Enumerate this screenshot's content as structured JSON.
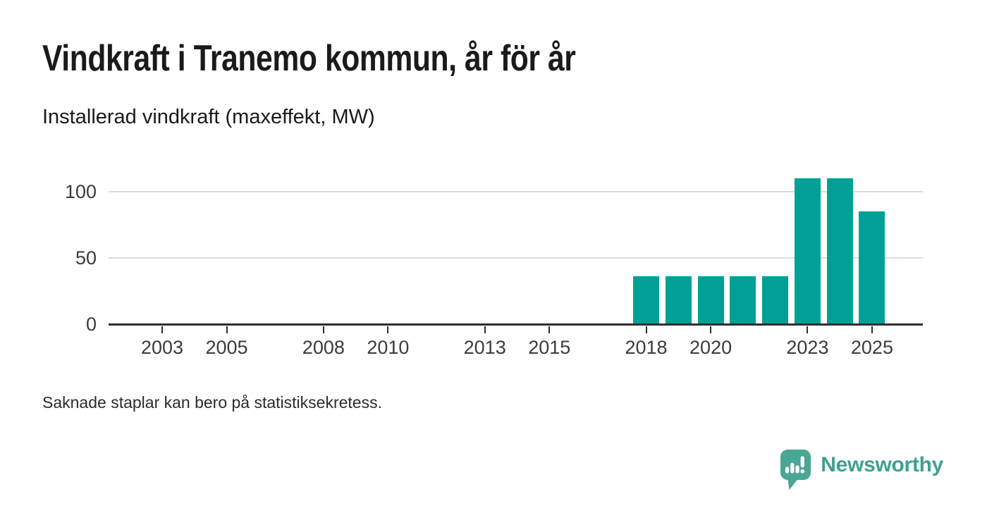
{
  "title": "Vindkraft i Tranemo kommun, år för år",
  "subtitle": "Installerad vindkraft (maxeffekt, MW)",
  "footnote": "Saknade staplar kan bero på statistiksekretess.",
  "brand": {
    "name": "Newsworthy",
    "icon": "bar-chart-speech-bubble-icon"
  },
  "colors": {
    "background": "#ffffff",
    "bar": "#00a097",
    "axis_line": "#2e2e2e",
    "gridline": "#dcdcdc",
    "axis_text": "#3b3b3b",
    "title_text": "#1a1a1a",
    "footnote_text": "#2b2b2b",
    "logo_icon": "#4aa695",
    "wordmark": "#3fa091"
  },
  "chart_data": {
    "type": "bar",
    "title": "Vindkraft i Tranemo kommun, år för år",
    "subtitle": "Installerad vindkraft (maxeffekt, MW)",
    "unit": "MW",
    "x": [
      2018,
      2019,
      2020,
      2021,
      2022,
      2023,
      2024,
      2025
    ],
    "values": [
      36,
      36,
      36,
      36,
      36,
      110,
      110,
      85
    ],
    "x_axis": {
      "range": [
        2001.5,
        2026.5
      ],
      "tick_labels": [
        "2003",
        "2005",
        "2008",
        "2010",
        "2013",
        "2015",
        "2018",
        "2020",
        "2023",
        "2025"
      ]
    },
    "y_axis": {
      "tick_labels": [
        "0",
        "50",
        "100"
      ],
      "range": [
        0,
        117
      ]
    },
    "grid": "horizontal-only",
    "legend": "none",
    "note": "Bars shown only for 2018-2025; earlier years have no bars"
  }
}
